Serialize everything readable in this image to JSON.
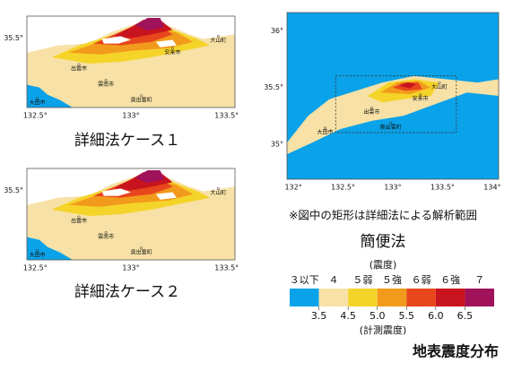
{
  "maps": [
    {
      "caption": "詳細法ケース１",
      "yticks": [
        "35.5°"
      ],
      "xticks": [
        "132.5°",
        "133°",
        "133.5°"
      ],
      "places": [
        "大山町",
        "安来市",
        "出雲市",
        "雲南市",
        "奥出雲町",
        "大田市"
      ]
    },
    {
      "caption": "詳細法ケース２",
      "yticks": [
        "35.5°"
      ],
      "xticks": [
        "132.5°",
        "133°",
        "133.5°"
      ],
      "places": [
        "大山町",
        "出雲市",
        "雲南市",
        "奥出雲町",
        "大田市"
      ]
    },
    {
      "caption": "簡便法",
      "yticks": [
        "36°",
        "35.5°",
        "35°"
      ],
      "xticks": [
        "132°",
        "132.5°",
        "133°",
        "133.5°",
        "134°"
      ],
      "places": [
        "大山町",
        "安来市",
        "出雲市",
        "奥出雲町",
        "大田市"
      ]
    }
  ],
  "note": "※図中の矩形は詳細法による解析範囲",
  "legend": {
    "unit_label": "(震度)",
    "categories": [
      "３以下",
      "４",
      "５弱",
      "５強",
      "６弱",
      "６強",
      "７"
    ],
    "colors": [
      "#0aa2e8",
      "#f7e1a6",
      "#f5d42a",
      "#f29a1c",
      "#e8461c",
      "#c8141e",
      "#a0125a"
    ],
    "ticks": [
      3.5,
      4.5,
      {
        "value": 5,
        "label": "5.0"
      },
      5.5,
      {
        "value": 6,
        "label": "6.0"
      },
      6.5
    ],
    "scale_label": "(計測震度)"
  },
  "title": "地表震度分布"
}
